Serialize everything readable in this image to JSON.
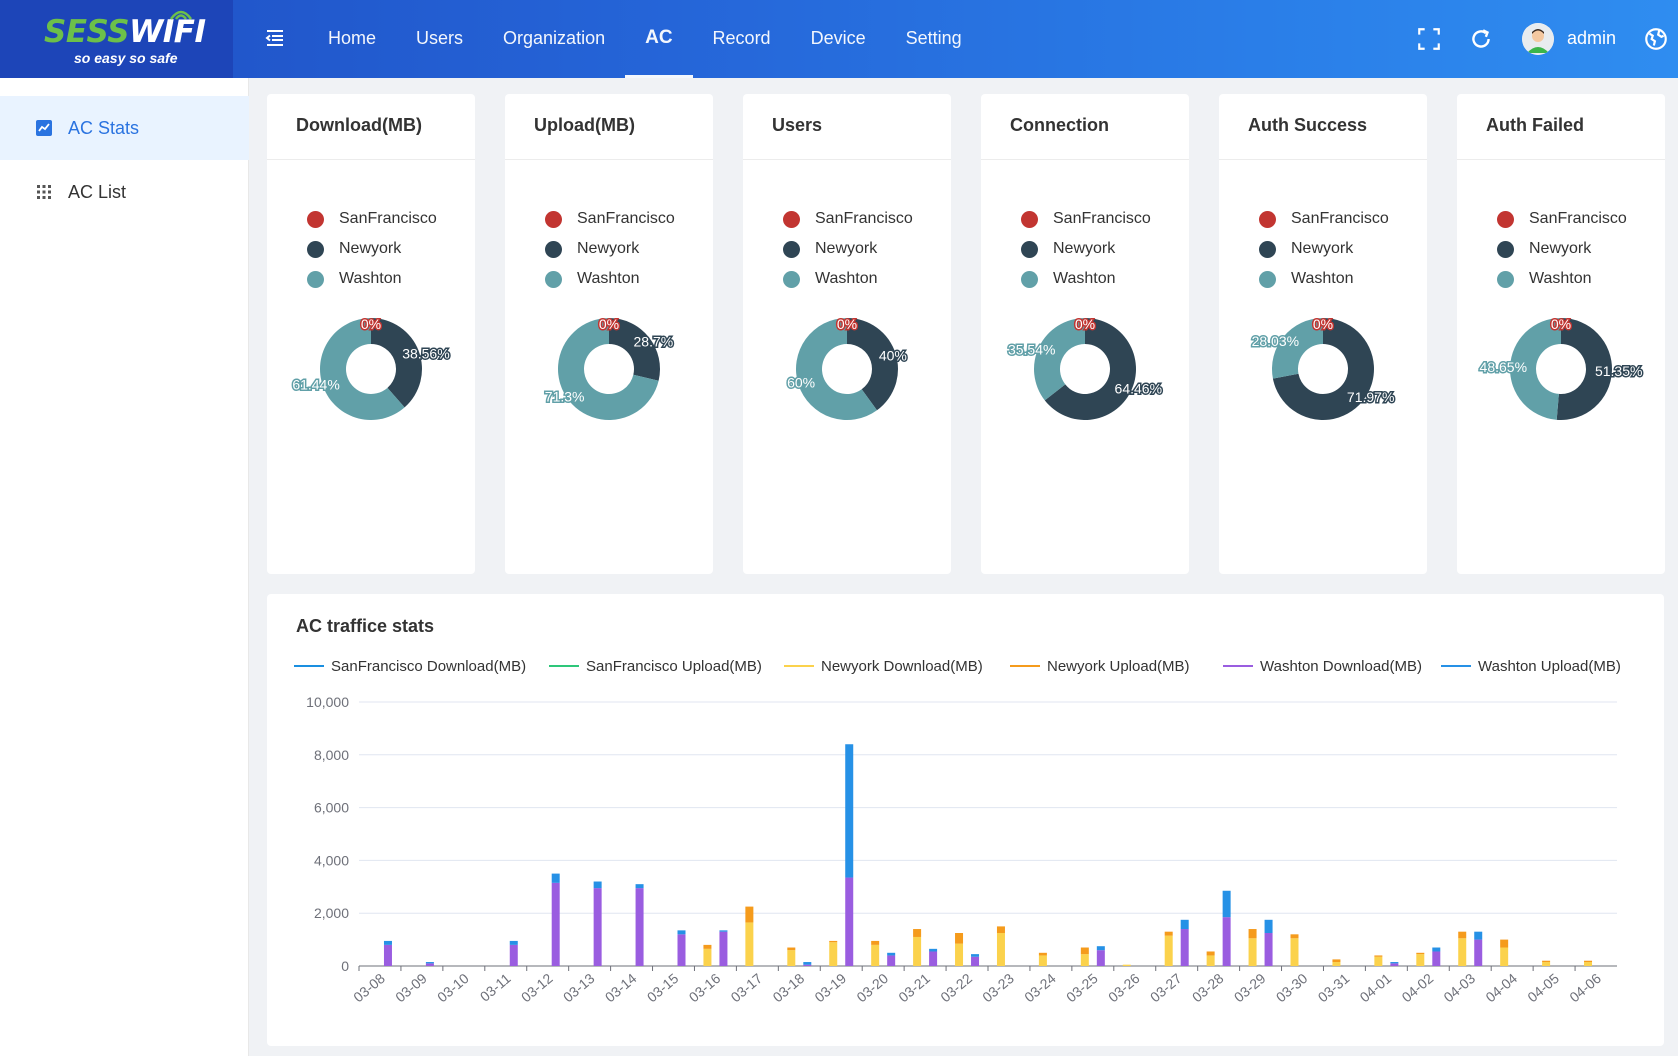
{
  "brand": {
    "name_part1": "SESS",
    "name_part2": "WIFI",
    "tagline": "so easy so safe"
  },
  "nav": {
    "items": [
      {
        "label": "Home",
        "active": false
      },
      {
        "label": "Users",
        "active": false
      },
      {
        "label": "Organization",
        "active": false
      },
      {
        "label": "AC",
        "active": true
      },
      {
        "label": "Record",
        "active": false
      },
      {
        "label": "Device",
        "active": false
      },
      {
        "label": "Setting",
        "active": false
      }
    ]
  },
  "header": {
    "user": "admin",
    "icons": [
      "fullscreen-icon",
      "refresh-icon",
      "globe-icon"
    ]
  },
  "sidebar": {
    "items": [
      {
        "label": "AC Stats",
        "icon": "chart-icon",
        "active": true
      },
      {
        "label": "AC List",
        "icon": "grid-icon",
        "active": false
      }
    ]
  },
  "colors": {
    "sanfrancisco": "#c23531",
    "newyork": "#2f4554",
    "washton": "#61a0a8",
    "sf_download": "#1a8fe0",
    "sf_upload": "#2ec77a",
    "ny_download": "#fbd24c",
    "ny_upload": "#f59b1c",
    "wa_download": "#9a5de0",
    "wa_upload": "#2691e6"
  },
  "legend_cities": [
    "SanFrancisco",
    "Newyork",
    "Washton"
  ],
  "cards": [
    {
      "title": "Download(MB)",
      "labels": [
        "0%",
        "38.56%",
        "61.44%"
      ],
      "values": [
        0,
        38.56,
        61.44
      ]
    },
    {
      "title": "Upload(MB)",
      "labels": [
        "0%",
        "28.7%",
        "71.3%"
      ],
      "values": [
        0,
        28.7,
        71.3
      ]
    },
    {
      "title": "Users",
      "labels": [
        "0%",
        "40%",
        "60%"
      ],
      "values": [
        0,
        40,
        60
      ]
    },
    {
      "title": "Connection",
      "labels": [
        "0%",
        "64.46%",
        "35.54%"
      ],
      "values": [
        0,
        64.46,
        35.54
      ]
    },
    {
      "title": "Auth Success",
      "labels": [
        "0%",
        "71.97%",
        "28.03%"
      ],
      "values": [
        0,
        71.97,
        28.03
      ]
    },
    {
      "title": "Auth Failed",
      "labels": [
        "0%",
        "51.35%",
        "48.65%"
      ],
      "values": [
        0,
        51.35,
        48.65
      ]
    }
  ],
  "traffic": {
    "title": "AC traffice stats"
  },
  "chart_data": {
    "type": "bar",
    "stacked": true,
    "ylim": [
      0,
      10000
    ],
    "yticks": [
      "0",
      "2,000",
      "4,000",
      "6,000",
      "8,000",
      "10,000"
    ],
    "ytick_values": [
      0,
      2000,
      4000,
      6000,
      8000,
      10000
    ],
    "categories": [
      "03-08",
      "03-09",
      "03-10",
      "03-11",
      "03-12",
      "03-13",
      "03-14",
      "03-15",
      "03-16",
      "03-17",
      "03-18",
      "03-19",
      "03-20",
      "03-21",
      "03-22",
      "03-23",
      "03-24",
      "03-25",
      "03-26",
      "03-27",
      "03-28",
      "03-29",
      "03-30",
      "03-31",
      "04-01",
      "04-02",
      "04-03",
      "04-04",
      "04-05",
      "04-06"
    ],
    "legend": [
      "SanFrancisco Download(MB)",
      "SanFrancisco Upload(MB)",
      "Newyork Download(MB)",
      "Newyork Upload(MB)",
      "Washton Download(MB)",
      "Washton Upload(MB)"
    ],
    "groups": [
      {
        "name": "Newyork",
        "series": [
          {
            "name": "Newyork Download(MB)",
            "color": "#fbd24c",
            "values": [
              0,
              0,
              0,
              0,
              0,
              0,
              0,
              0,
              650,
              1650,
              600,
              900,
              800,
              1100,
              850,
              1250,
              400,
              450,
              50,
              1150,
              400,
              1050,
              1050,
              150,
              350,
              450,
              1050,
              700,
              150,
              150
            ]
          },
          {
            "name": "Newyork Upload(MB)",
            "color": "#f59b1c",
            "values": [
              0,
              0,
              0,
              0,
              0,
              0,
              0,
              0,
              150,
              600,
              100,
              50,
              150,
              300,
              400,
              250,
              100,
              250,
              0,
              150,
              150,
              350,
              150,
              100,
              50,
              50,
              250,
              300,
              50,
              50
            ]
          }
        ]
      },
      {
        "name": "Washton",
        "series": [
          {
            "name": "Washton Download(MB)",
            "color": "#9a5de0",
            "values": [
              800,
              100,
              0,
              800,
              3150,
              2950,
              2950,
              1200,
              1300,
              0,
              50,
              3350,
              400,
              550,
              350,
              0,
              0,
              600,
              0,
              1400,
              1850,
              1250,
              0,
              0,
              100,
              550,
              1000,
              0,
              0,
              0
            ]
          },
          {
            "name": "Washton Upload(MB)",
            "color": "#2691e6",
            "values": [
              150,
              50,
              0,
              150,
              350,
              250,
              150,
              150,
              50,
              0,
              100,
              5050,
              100,
              100,
              100,
              0,
              0,
              150,
              0,
              350,
              1000,
              500,
              0,
              0,
              50,
              150,
              300,
              0,
              0,
              0
            ]
          }
        ]
      }
    ]
  }
}
